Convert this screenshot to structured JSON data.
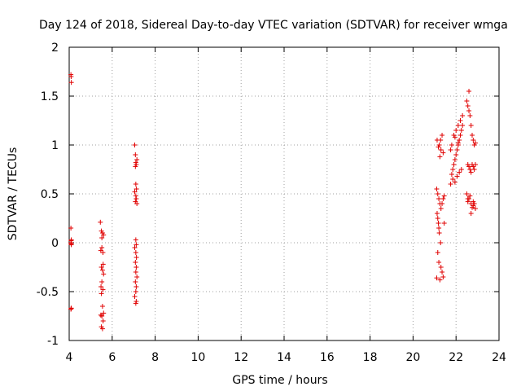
{
  "chart_data": {
    "type": "scatter",
    "title": "Day 124 of 2018, Sidereal Day-to-day VTEC variation (SDTVAR) for receiver wmga",
    "xlabel": "GPS time / hours",
    "ylabel": "SDTVAR / TECUs",
    "xlim": [
      4,
      24
    ],
    "ylim": [
      -1,
      2
    ],
    "grid": true,
    "marker": "+",
    "color": "#e00000",
    "x_ticks": [
      4,
      6,
      8,
      10,
      12,
      14,
      16,
      18,
      20,
      22,
      24
    ],
    "x_tick_labels": [
      "4",
      "6",
      "8",
      "10",
      "12",
      "14",
      "16",
      "18",
      "20",
      "22",
      "24"
    ],
    "y_ticks": [
      -1,
      -0.5,
      0,
      0.5,
      1,
      1.5,
      2
    ],
    "y_tick_labels": [
      "-1",
      "-0.5",
      "0",
      "0.5",
      "1",
      "1.5",
      "2"
    ],
    "series": [
      {
        "name": "SDTVAR",
        "x": [
          4.08,
          4.09,
          4.1,
          4.08,
          4.09,
          4.1,
          4.08,
          4.09,
          4.1,
          4.09,
          4.08,
          4.1,
          5.45,
          5.5,
          5.55,
          5.6,
          5.52,
          5.57,
          5.47,
          5.58,
          5.5,
          5.55,
          5.6,
          5.52,
          5.48,
          5.57,
          5.5,
          5.55,
          5.6,
          5.52,
          5.47,
          5.58,
          5.5,
          5.55,
          5.52,
          7.05,
          7.08,
          7.1,
          7.12,
          7.15,
          7.08,
          7.1,
          7.13,
          7.05,
          7.1,
          7.12,
          7.08,
          7.15,
          7.1,
          7.12,
          7.05,
          7.1,
          7.13,
          7.08,
          7.12,
          7.1,
          7.15,
          7.08,
          7.12,
          7.1,
          7.05,
          7.12,
          7.1,
          21.1,
          21.15,
          21.2,
          21.25,
          21.3,
          21.12,
          21.18,
          21.22,
          21.28,
          21.35,
          21.4,
          21.45,
          21.15,
          21.2,
          21.3,
          21.35,
          21.4,
          21.25,
          21.1,
          21.15,
          21.2,
          21.45,
          21.35,
          21.28,
          21.22,
          21.18,
          21.12,
          21.3,
          21.4,
          21.25,
          21.75,
          21.8,
          21.85,
          21.9,
          21.95,
          22.0,
          22.05,
          22.1,
          22.15,
          22.2,
          22.25,
          22.3,
          21.8,
          21.9,
          22.0,
          22.1,
          22.2,
          22.3,
          21.85,
          21.95,
          22.05,
          22.15,
          22.25,
          21.75,
          21.95,
          22.1,
          22.5,
          22.55,
          22.6,
          22.65,
          22.7,
          22.75,
          22.8,
          22.85,
          22.9,
          22.55,
          22.6,
          22.65,
          22.7,
          22.75,
          22.8,
          22.85,
          22.9,
          22.5,
          22.6,
          22.7,
          22.8,
          22.9,
          22.55,
          22.65,
          22.75,
          22.85,
          22.6,
          22.7,
          22.8,
          22.55
        ],
        "y": [
          1.72,
          1.7,
          1.64,
          0.15,
          0.02,
          -0.02,
          0.0,
          -0.01,
          0.03,
          -0.67,
          -0.68,
          -0.67,
          0.21,
          0.12,
          0.1,
          0.08,
          -0.05,
          -0.1,
          -0.08,
          -0.22,
          -0.25,
          -0.28,
          -0.32,
          -0.4,
          -0.45,
          -0.48,
          -0.52,
          -0.65,
          -0.72,
          -0.75,
          -0.74,
          -0.8,
          -0.86,
          -0.88,
          0.05,
          1.0,
          0.9,
          0.82,
          0.8,
          0.85,
          0.78,
          0.6,
          0.55,
          0.52,
          0.48,
          0.45,
          0.42,
          0.4,
          0.03,
          -0.02,
          -0.05,
          -0.1,
          -0.15,
          -0.2,
          -0.25,
          -0.3,
          -0.35,
          -0.4,
          -0.45,
          -0.5,
          -0.55,
          -0.6,
          -0.62,
          0.55,
          0.5,
          0.45,
          0.4,
          0.35,
          0.3,
          0.2,
          0.1,
          0.0,
          0.4,
          0.45,
          0.48,
          -0.1,
          -0.2,
          -0.25,
          -0.3,
          -0.35,
          -0.38,
          -0.36,
          0.25,
          0.15,
          0.2,
          1.1,
          1.05,
          1.0,
          0.98,
          1.05,
          0.95,
          0.92,
          0.88,
          0.6,
          0.7,
          0.75,
          0.8,
          0.85,
          0.9,
          0.95,
          1.0,
          1.05,
          1.1,
          1.15,
          1.2,
          1.0,
          1.1,
          1.15,
          1.2,
          1.25,
          1.3,
          0.65,
          0.62,
          0.68,
          0.72,
          0.75,
          0.95,
          1.08,
          1.02,
          1.45,
          1.4,
          1.35,
          1.3,
          1.2,
          1.1,
          1.05,
          1.0,
          1.02,
          0.8,
          0.78,
          0.75,
          0.72,
          0.8,
          0.78,
          0.75,
          0.8,
          0.5,
          0.45,
          0.4,
          0.38,
          0.35,
          0.42,
          0.48,
          0.36,
          0.4,
          1.55,
          0.3,
          0.42,
          0.45
        ]
      }
    ]
  }
}
